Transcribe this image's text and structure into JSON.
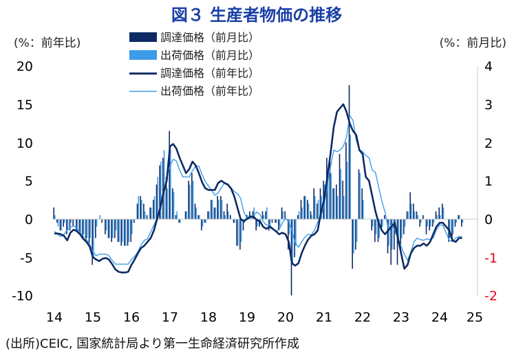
{
  "chart_data": {
    "type": "bar+line",
    "title": "図３ 生産者物価の推移",
    "left_axis_label": "(%：前年比)",
    "right_axis_label": "(%：前月比)",
    "source": "(出所)CEIC, 国家統計局より第一生命経済研究所作成",
    "left_ylim": [
      -10,
      20
    ],
    "right_ylim": [
      -2,
      4
    ],
    "left_ticks": [
      "20",
      "15",
      "10",
      "5",
      "0",
      "-5",
      "-10"
    ],
    "right_ticks": [
      "4",
      "3",
      "2",
      "1",
      "0",
      "-1",
      "-2"
    ],
    "x_ticks": [
      "14",
      "15",
      "16",
      "17",
      "18",
      "19",
      "20",
      "21",
      "22",
      "23",
      "24",
      "25"
    ],
    "legend": [
      "調達価格（前月比）",
      "出荷価格（前月比）",
      "調達価格（前年比）",
      "出荷価格（前年比）"
    ],
    "x_start": 2014.0,
    "x_step": 0.08333,
    "colors": {
      "procurement_mom": "#0d2a63",
      "output_mom": "#3d9be9",
      "procurement_yoy": "#0d2a63",
      "output_yoy": "#3d9be9"
    },
    "series": [
      {
        "name": "調達価格（前年比）",
        "axis": "left",
        "values": [
          -1.9,
          -1.9,
          -2.0,
          -2.2,
          -2.8,
          -1.8,
          -1.4,
          -1.6,
          -2.0,
          -2.6,
          -3.0,
          -3.6,
          -5.0,
          -5.3,
          -5.5,
          -5.2,
          -5.1,
          -5.3,
          -5.9,
          -6.6,
          -6.9,
          -7.0,
          -7.0,
          -6.9,
          -6.0,
          -5.3,
          -4.5,
          -3.8,
          -3.5,
          -3.0,
          -2.5,
          -1.5,
          0.0,
          1.5,
          3.5,
          5.0,
          9.5,
          9.8,
          9.2,
          8.0,
          7.0,
          6.0,
          6.5,
          7.5,
          7.0,
          6.0,
          4.8,
          4.0,
          3.8,
          3.8,
          3.8,
          4.7,
          5.0,
          4.7,
          4.5,
          4.0,
          3.0,
          1.5,
          0.0,
          -0.3,
          0.0,
          0.3,
          0.3,
          -0.1,
          -0.3,
          -1.0,
          -1.3,
          -1.0,
          -1.3,
          -1.6,
          -2.0,
          -1.8,
          -2.0,
          -3.0,
          -5.8,
          -6.1,
          -5.8,
          -4.5,
          -3.5,
          -2.7,
          -2.2,
          -2.0,
          -1.5,
          0.8,
          2.5,
          5.5,
          8.5,
          12.0,
          14.0,
          14.5,
          15.0,
          14.0,
          12.5,
          11.5,
          11.0,
          9.0,
          8.5,
          5.5,
          5.0,
          3.0,
          1.0,
          -0.5,
          -1.5,
          -2.0,
          -1.5,
          -1.0,
          -0.5,
          -2.5,
          -4.5,
          -6.5,
          -6.0,
          -4.5,
          -3.8,
          -3.5,
          -3.5,
          -3.2,
          -3.5,
          -3.0,
          -2.0,
          -1.0,
          -0.5,
          -0.5,
          -1.0,
          -1.5,
          -2.8,
          -3.0,
          -2.5,
          -2.5
        ],
        "color": "#0d2a63"
      },
      {
        "name": "出荷価格（前年比）",
        "axis": "left",
        "values": [
          -1.6,
          -2.0,
          -2.3,
          -2.0,
          -1.4,
          -1.1,
          -0.9,
          -1.2,
          -1.8,
          -2.2,
          -2.7,
          -3.3,
          -4.3,
          -4.8,
          -4.6,
          -4.6,
          -4.6,
          -4.8,
          -5.4,
          -5.9,
          -5.9,
          -5.9,
          -5.9,
          -5.9,
          -5.3,
          -4.9,
          -4.3,
          -3.4,
          -2.8,
          -2.6,
          -1.7,
          -0.8,
          0.1,
          1.2,
          3.3,
          5.5,
          6.9,
          7.8,
          7.6,
          6.4,
          5.5,
          5.5,
          5.5,
          6.3,
          6.9,
          6.9,
          5.8,
          4.9,
          4.3,
          3.7,
          3.1,
          3.4,
          4.1,
          4.7,
          4.6,
          4.1,
          3.6,
          3.3,
          2.7,
          0.9,
          0.1,
          0.1,
          0.4,
          0.9,
          0.6,
          -0.3,
          -0.8,
          -0.8,
          -1.2,
          -1.6,
          -1.4,
          -0.5,
          0.1,
          -0.4,
          -1.5,
          -3.1,
          -3.7,
          -3.0,
          -2.4,
          -2.0,
          -2.1,
          -1.5,
          -0.4,
          0.3,
          1.7,
          4.4,
          6.8,
          9.0,
          8.8,
          9.0,
          9.5,
          10.7,
          13.5,
          12.9,
          10.3,
          9.1,
          8.8,
          8.3,
          8.0,
          6.4,
          6.1,
          4.2,
          2.3,
          0.9,
          -1.3,
          -0.8,
          -1.4,
          -2.5,
          -3.6,
          -4.6,
          -5.4,
          -4.4,
          -3.0,
          -2.5,
          -2.7,
          -2.8,
          -2.6,
          -2.7,
          -2.5,
          -1.4,
          -0.8,
          -0.8,
          -1.8,
          -2.8,
          -2.9,
          -2.5,
          -2.3,
          -2.3
        ],
        "color": "#3d9be9"
      },
      {
        "name": "調達価格（前月比）",
        "axis": "right",
        "values": [
          0.3,
          -0.1,
          -0.3,
          -0.2,
          -0.4,
          -0.3,
          -0.2,
          -0.3,
          -0.4,
          -0.5,
          -0.6,
          -0.7,
          -1.2,
          -0.5,
          0.0,
          -0.1,
          -0.4,
          -0.5,
          -0.6,
          -0.5,
          -0.6,
          -0.7,
          -0.7,
          -0.7,
          -0.6,
          -0.1,
          0.4,
          0.6,
          0.4,
          0.1,
          0.3,
          0.5,
          0.9,
          1.4,
          1.6,
          1.1,
          2.3,
          0.8,
          0.1,
          -0.1,
          0.0,
          0.2,
          1.0,
          1.2,
          0.4,
          0.1,
          -0.3,
          -0.1,
          0.2,
          0.5,
          0.3,
          0.6,
          0.6,
          0.2,
          0.4,
          0.1,
          -0.1,
          -0.7,
          -0.8,
          -0.3,
          0.1,
          0.2,
          0.2,
          -0.3,
          -0.2,
          0.2,
          0.2,
          -0.3,
          -0.1,
          -0.1,
          -0.3,
          0.3,
          0.2,
          -0.8,
          -2.0,
          -1.0,
          0.1,
          0.5,
          0.6,
          0.5,
          0.2,
          0.8,
          0.4,
          0.8,
          1.0,
          1.6,
          1.5,
          0.8,
          0.9,
          1.7,
          1.0,
          2.0,
          3.5,
          -1.3,
          -0.8,
          1.3,
          0.8,
          0.0,
          0.0,
          -0.3,
          -0.6,
          -0.6,
          -0.3,
          0.1,
          -0.9,
          -1.2,
          -0.8,
          -1.2,
          -0.8,
          -0.4,
          0.2,
          0.7,
          0.4,
          0.2,
          -0.2,
          0.1,
          -0.4,
          -0.3,
          -0.2,
          0.2,
          0.3,
          0.4,
          0.0,
          -0.6,
          -0.6,
          -0.2,
          0.1,
          -0.2
        ],
        "color": "#0d2a63"
      },
      {
        "name": "出荷価格（前月比）",
        "axis": "right",
        "values": [
          0.1,
          -0.2,
          -0.3,
          -0.1,
          -0.3,
          -0.1,
          0.0,
          -0.3,
          -0.4,
          -0.4,
          -0.5,
          -0.5,
          -1.0,
          -0.2,
          0.1,
          0.0,
          -0.3,
          -0.5,
          -0.5,
          -0.3,
          -0.6,
          -0.6,
          -0.7,
          -0.6,
          -0.4,
          0.0,
          0.6,
          0.5,
          0.2,
          0.0,
          0.3,
          0.6,
          1.1,
          1.5,
          1.8,
          0.8,
          1.8,
          0.7,
          0.2,
          -0.1,
          0.0,
          0.2,
          0.9,
          1.0,
          0.3,
          0.1,
          -0.2,
          -0.1,
          0.2,
          0.5,
          0.3,
          0.5,
          0.5,
          0.1,
          0.2,
          0.0,
          -0.1,
          -0.7,
          -0.6,
          -0.1,
          0.1,
          0.1,
          0.3,
          -0.2,
          -0.1,
          0.1,
          0.3,
          -0.2,
          0.0,
          -0.1,
          -0.2,
          0.2,
          0.0,
          -0.4,
          -1.2,
          -0.7,
          0.2,
          0.3,
          0.6,
          0.4,
          0.1,
          0.6,
          0.5,
          0.6,
          0.9,
          1.3,
          1.2,
          0.8,
          0.6,
          1.3,
          0.6,
          1.5,
          2.2,
          -0.9,
          -0.6,
          1.2,
          0.5,
          0.0,
          0.0,
          -0.2,
          -0.4,
          -0.5,
          -0.2,
          0.0,
          -0.7,
          -0.8,
          -0.4,
          -0.6,
          -0.5,
          -0.2,
          0.2,
          0.4,
          0.2,
          0.1,
          -0.1,
          0.0,
          -0.2,
          -0.2,
          -0.1,
          0.1,
          0.1,
          0.3,
          0.0,
          -0.5,
          -0.4,
          -0.1,
          0.1,
          -0.1
        ],
        "color": "#3d9be9"
      }
    ]
  }
}
